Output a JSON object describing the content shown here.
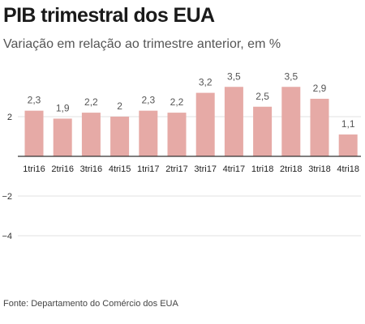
{
  "header": {
    "title": "PIB trimestral dos EUA",
    "subtitle": "Variação em relação ao trimestre anterior, em %"
  },
  "footer": {
    "source": "Fonte: Departamento do Comércio dos EUA"
  },
  "colors": {
    "bar": "#e6aaa6",
    "zero_line": "#333333",
    "grid": "#e2e2e2"
  },
  "chart_data": {
    "type": "bar",
    "title": "PIB trimestral dos EUA",
    "subtitle": "Variação em relação ao trimestre anterior, em %",
    "categories": [
      "1tri16",
      "2tri16",
      "3tri16",
      "4tri15",
      "1tri17",
      "2tri17",
      "3tri17",
      "4tri17",
      "1tri18",
      "2tri18",
      "3tri18",
      "4tri18"
    ],
    "values": [
      2.3,
      1.9,
      2.2,
      2,
      2.3,
      2.2,
      3.2,
      3.5,
      2.5,
      3.5,
      2.9,
      1.1
    ],
    "value_labels": [
      "2,3",
      "1,9",
      "2,2",
      "2",
      "2,3",
      "2,2",
      "3,2",
      "3,5",
      "2,5",
      "3,5",
      "2,9",
      "1,1"
    ],
    "y_ticks": [
      2,
      -2,
      -4
    ],
    "y_tick_labels": [
      "2",
      "−2",
      "−4"
    ],
    "ylim": [
      -4.8,
      3.8
    ],
    "grid": true,
    "legend": "none"
  }
}
